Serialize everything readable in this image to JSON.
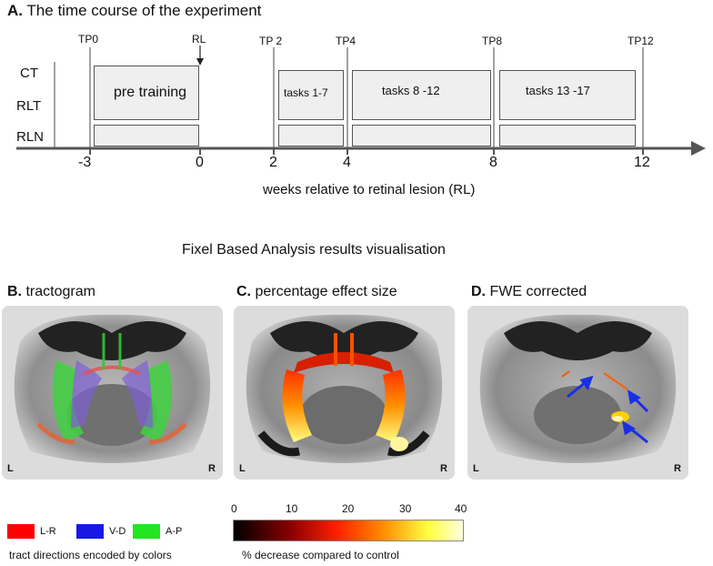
{
  "panel_a": {
    "letter": "A.",
    "title": "The time course of the experiment",
    "timepoints": [
      "TP0",
      "RL",
      "TP 2",
      "TP4",
      "TP8",
      "TP12"
    ],
    "rows": [
      "CT",
      "RLT",
      "RLN"
    ],
    "phases": [
      "pre training",
      "tasks 1-7",
      "tasks 8 -12",
      "tasks 13 -17"
    ],
    "ticks": [
      "-3",
      "0",
      "2",
      "4",
      "8",
      "12"
    ],
    "axis_label": "weeks relative to retinal lesion (RL)"
  },
  "section_title": "Fixel Based Analysis results visualisation",
  "panel_b": {
    "letter": "B.",
    "title": "tractogram",
    "left": "L",
    "right": "R"
  },
  "panel_c": {
    "letter": "C.",
    "title": "percentage effect size",
    "left": "L",
    "right": "R"
  },
  "panel_d": {
    "letter": "D.",
    "title": "FWE corrected",
    "left": "L",
    "right": "R"
  },
  "legend_directions": {
    "items": [
      {
        "label": "L-R",
        "color": "#ff0000",
        "icon": "red-swatch"
      },
      {
        "label": "V-D",
        "color": "#1818e6",
        "icon": "blue-swatch"
      },
      {
        "label": "A-P",
        "color": "#22e622",
        "icon": "green-swatch"
      }
    ],
    "caption": "tract directions encoded by colors"
  },
  "colorbar": {
    "ticks": [
      "0",
      "10",
      "20",
      "30",
      "40"
    ],
    "caption": "% decrease compared to control",
    "colors": [
      "#000000",
      "#8b0000",
      "#ff2000",
      "#ff8c00",
      "#ffff40",
      "#ffffe0"
    ]
  },
  "arrow_color": "#1a2ee6"
}
